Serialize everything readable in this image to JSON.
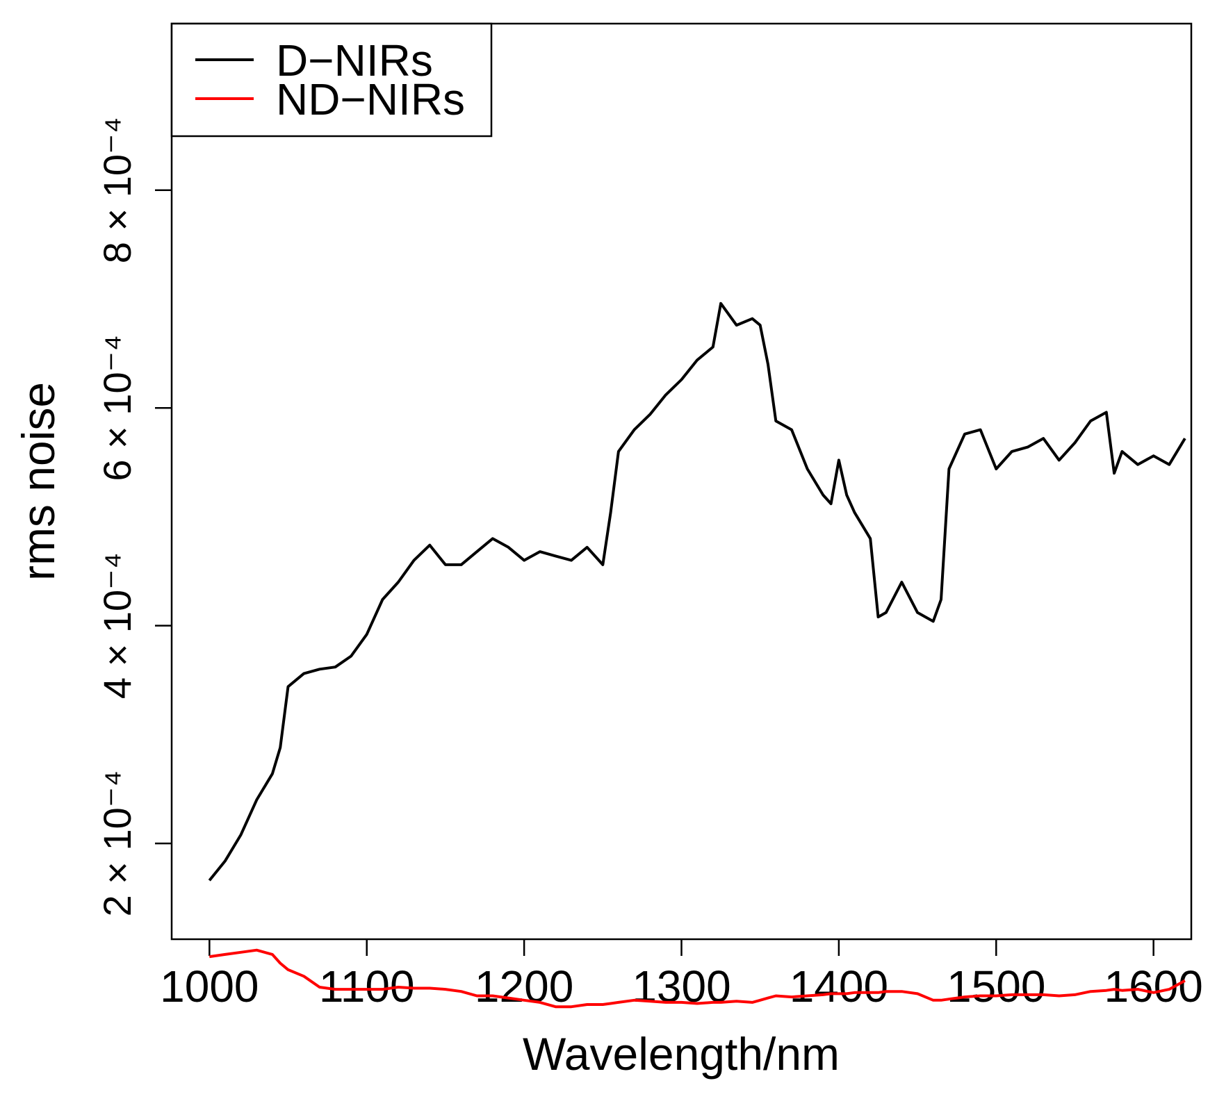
{
  "chart_data": {
    "type": "line",
    "xlabel": "Wavelength/nm",
    "ylabel": "rms noise",
    "x": [
      1000,
      1010,
      1020,
      1030,
      1040,
      1045,
      1050,
      1060,
      1070,
      1080,
      1090,
      1100,
      1110,
      1120,
      1130,
      1140,
      1150,
      1160,
      1170,
      1180,
      1190,
      1200,
      1210,
      1220,
      1230,
      1240,
      1250,
      1255,
      1260,
      1270,
      1280,
      1290,
      1300,
      1310,
      1320,
      1325,
      1335,
      1345,
      1350,
      1355,
      1360,
      1370,
      1380,
      1390,
      1395,
      1400,
      1405,
      1410,
      1420,
      1425,
      1430,
      1440,
      1450,
      1460,
      1465,
      1470,
      1480,
      1490,
      1500,
      1510,
      1520,
      1530,
      1540,
      1550,
      1560,
      1570,
      1575,
      1580,
      1590,
      1600,
      1610,
      1620
    ],
    "series": [
      {
        "name": "D−NIRs",
        "color": "#000000",
        "values": [
          0.000166,
          0.000184,
          0.000208,
          0.00024,
          0.000264,
          0.000288,
          0.000344,
          0.000356,
          0.00036,
          0.000362,
          0.000372,
          0.000392,
          0.000424,
          0.00044,
          0.00046,
          0.000474,
          0.000456,
          0.000456,
          0.000468,
          0.00048,
          0.000472,
          0.00046,
          0.000468,
          0.000464,
          0.00046,
          0.000472,
          0.000456,
          0.000504,
          0.00056,
          0.00058,
          0.000594,
          0.000612,
          0.000626,
          0.000644,
          0.000656,
          0.000696,
          0.000676,
          0.000682,
          0.000676,
          0.00064,
          0.000588,
          0.00058,
          0.000544,
          0.00052,
          0.000512,
          0.000552,
          0.00052,
          0.000504,
          0.00048,
          0.000408,
          0.000412,
          0.00044,
          0.000412,
          0.000404,
          0.000424,
          0.000544,
          0.000576,
          0.00058,
          0.000544,
          0.00056,
          0.000564,
          0.000572,
          0.000552,
          0.000568,
          0.000588,
          0.000596,
          0.00054,
          0.00056,
          0.000548,
          0.000556,
          0.000548,
          0.000572
        ]
      },
      {
        "name": "ND−NIRs",
        "color": "#ff0000",
        "values": [
          9.6e-05,
          9.8e-05,
          0.0001,
          0.000102,
          9.8e-05,
          9e-05,
          8.4e-05,
          7.8e-05,
          6.8e-05,
          6.6e-05,
          6.6e-05,
          6.6e-05,
          6.6e-05,
          6.8e-05,
          6.7e-05,
          6.7e-05,
          6.6e-05,
          6.4e-05,
          6e-05,
          6e-05,
          5.8e-05,
          5.6e-05,
          5.4e-05,
          5e-05,
          5e-05,
          5.2e-05,
          5.2e-05,
          5.3e-05,
          5.4e-05,
          5.6e-05,
          5.5e-05,
          5.4e-05,
          5.4e-05,
          5.3e-05,
          5.4e-05,
          5.4e-05,
          5.5e-05,
          5.4e-05,
          5.6e-05,
          5.8e-05,
          6e-05,
          5.9e-05,
          6e-05,
          6.1e-05,
          6.2e-05,
          6.2e-05,
          6.2e-05,
          6.3e-05,
          6.3e-05,
          6.3e-05,
          6.4e-05,
          6.4e-05,
          6.2e-05,
          5.6e-05,
          5.6e-05,
          5.7e-05,
          5.9e-05,
          6e-05,
          6e-05,
          6.1e-05,
          6.1e-05,
          6.1e-05,
          6e-05,
          6.1e-05,
          6.4e-05,
          6.5e-05,
          6.6e-05,
          6.5e-05,
          6.6e-05,
          6.3e-05,
          6.6e-05,
          7.4e-05
        ]
      }
    ],
    "xlim": [
      976,
      1624
    ],
    "ylim": [
      0.000112,
      0.000953
    ],
    "xticks": [
      1000,
      1100,
      1200,
      1300,
      1400,
      1500,
      1600
    ],
    "yticks": [
      {
        "value": 0.0002,
        "label": "2 × 10⁻⁴"
      },
      {
        "value": 0.0004,
        "label": "4 × 10⁻⁴"
      },
      {
        "value": 0.0006,
        "label": "6 × 10⁻⁴"
      },
      {
        "value": 0.0008,
        "label": "8 × 10⁻⁴"
      }
    ],
    "legend": "top-left"
  }
}
